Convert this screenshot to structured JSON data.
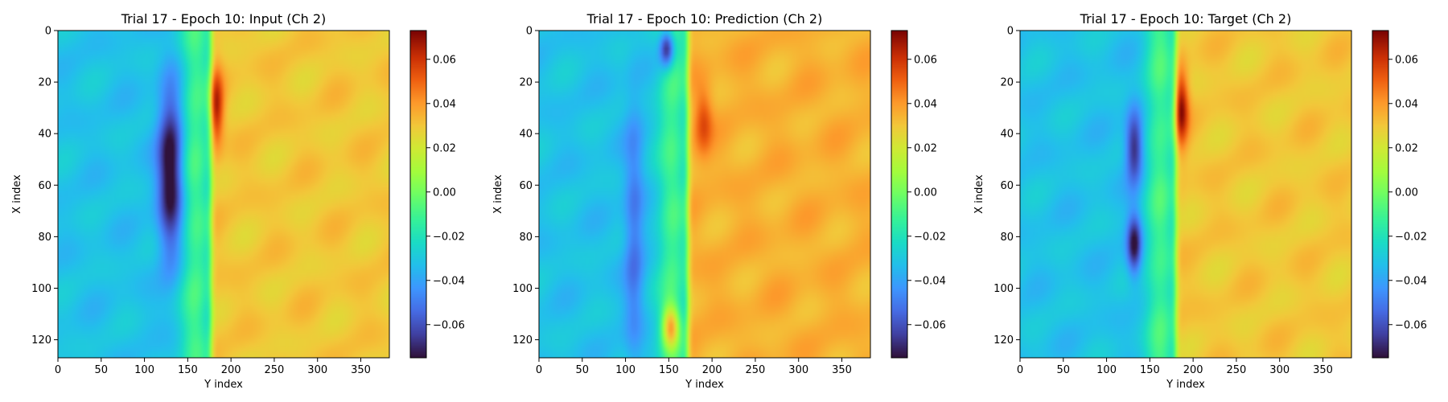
{
  "chart_data": [
    {
      "type": "heatmap",
      "title": "Trial 17 - Epoch 10: Input (Ch 2)",
      "xlabel": "Y index",
      "ylabel": "X index",
      "xlim": [
        0,
        383
      ],
      "ylim": [
        127,
        0
      ],
      "xticks": [
        0,
        50,
        100,
        150,
        200,
        250,
        300,
        350
      ],
      "yticks": [
        0,
        20,
        40,
        60,
        80,
        100,
        120
      ],
      "colorbar": {
        "colormap": "turbo",
        "range": [
          -0.075,
          0.073
        ],
        "ticks": [
          0.06,
          0.04,
          0.02,
          0.0,
          -0.02,
          -0.04,
          -0.06
        ],
        "tick_labels": [
          "0.06",
          "0.04",
          "0.02",
          "0.00",
          "−0.02",
          "−0.04",
          "−0.06"
        ]
      },
      "field": {
        "front_position_y": 177,
        "left_background": -0.032,
        "right_background": 0.03,
        "features": [
          {
            "kind": "low",
            "y": 130,
            "x": 55,
            "sy": 10,
            "sx": 22,
            "amplitude": -0.05
          },
          {
            "kind": "high",
            "y": 183,
            "x": 30,
            "sy": 6,
            "sx": 10,
            "amplitude": 0.035
          }
        ]
      }
    },
    {
      "type": "heatmap",
      "title": "Trial 17 - Epoch 10: Prediction (Ch 2)",
      "xlabel": "Y index",
      "ylabel": "X index",
      "xlim": [
        0,
        383
      ],
      "ylim": [
        127,
        0
      ],
      "xticks": [
        0,
        50,
        100,
        150,
        200,
        250,
        300,
        350
      ],
      "yticks": [
        0,
        20,
        40,
        60,
        80,
        100,
        120
      ],
      "colorbar": {
        "colormap": "turbo",
        "range": [
          -0.075,
          0.073
        ],
        "ticks": [
          0.06,
          0.04,
          0.02,
          0.0,
          -0.02,
          -0.04,
          -0.06
        ],
        "tick_labels": [
          "0.06",
          "0.04",
          "0.02",
          "0.00",
          "−0.02",
          "−0.04",
          "−0.06"
        ]
      },
      "field": {
        "front_position_y": 172,
        "left_background": -0.032,
        "right_background": 0.035,
        "features": [
          {
            "kind": "low",
            "y": 148,
            "x": 7,
            "sy": 6,
            "sx": 5,
            "amplitude": -0.05
          },
          {
            "kind": "low",
            "y": 110,
            "x": 80,
            "sy": 8,
            "sx": 35,
            "amplitude": -0.02
          },
          {
            "kind": "high",
            "y": 190,
            "x": 35,
            "sy": 7,
            "sx": 9,
            "amplitude": 0.02
          },
          {
            "kind": "high",
            "y": 152,
            "x": 115,
            "sy": 7,
            "sx": 6,
            "amplitude": 0.05
          }
        ]
      }
    },
    {
      "type": "heatmap",
      "title": "Trial 17 - Epoch 10: Target (Ch 2)",
      "xlabel": "Y index",
      "ylabel": "X index",
      "xlim": [
        0,
        383
      ],
      "ylim": [
        127,
        0
      ],
      "xticks": [
        0,
        50,
        100,
        150,
        200,
        250,
        300,
        350
      ],
      "yticks": [
        0,
        20,
        40,
        60,
        80,
        100,
        120
      ],
      "colorbar": {
        "colormap": "turbo",
        "range": [
          -0.075,
          0.073
        ],
        "ticks": [
          0.06,
          0.04,
          0.02,
          0.0,
          -0.02,
          -0.04,
          -0.06
        ],
        "tick_labels": [
          "0.06",
          "0.04",
          "0.02",
          "0.00",
          "−0.02",
          "−0.04",
          "−0.06"
        ]
      },
      "field": {
        "front_position_y": 180,
        "left_background": -0.032,
        "right_background": 0.03,
        "features": [
          {
            "kind": "low",
            "y": 132,
            "x": 45,
            "sy": 7,
            "sx": 10,
            "amplitude": -0.04
          },
          {
            "kind": "low",
            "y": 132,
            "x": 83,
            "sy": 6,
            "sx": 8,
            "amplitude": -0.045
          },
          {
            "kind": "high",
            "y": 186,
            "x": 30,
            "sy": 6,
            "sx": 10,
            "amplitude": 0.04
          }
        ]
      }
    }
  ]
}
